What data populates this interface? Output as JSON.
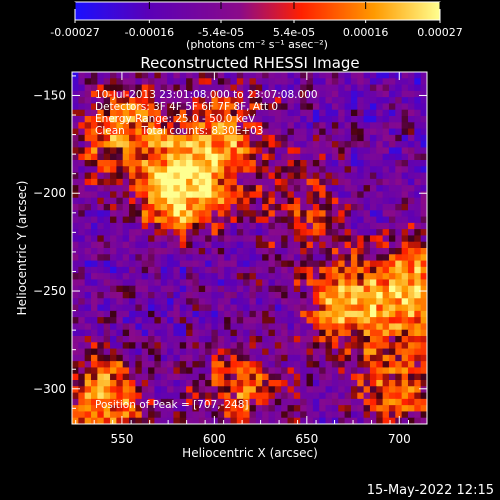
{
  "colorbar": {
    "ticks": [
      "-0.00027",
      "-0.00016",
      "-5.4e-05",
      "5.4e-05",
      "0.00016",
      "0.00027"
    ],
    "tick_values": [
      -0.00027,
      -0.00016,
      -5.4e-05,
      5.4e-05,
      0.00016,
      0.00027
    ],
    "units": "(photons cm⁻² s⁻¹ asec⁻²)",
    "range": [
      -0.00027,
      0.00027
    ],
    "colors": [
      "#1a10ff",
      "#5a00b8",
      "#8a0a8a",
      "#ff2000",
      "#ff9a00",
      "#ffff90"
    ]
  },
  "chart_data": {
    "type": "heatmap",
    "title": "Reconstructed RHESSI Image",
    "xlabel": "Heliocentric X (arcsec)",
    "ylabel": "Heliocentric Y (arcsec)",
    "xlim": [
      523,
      715
    ],
    "ylim": [
      -318,
      -138
    ],
    "xticks": [
      550,
      600,
      650,
      700
    ],
    "yticks": [
      -150,
      -200,
      -250,
      -300
    ],
    "annotations": [
      "10-Jul-2013 23:01:08.000 to 23:07:08.000",
      "Detectors: 3F 4F 5F 6F 7F 8F, Att 0",
      "Energy Range: 25.0 - 50.0 keV",
      "Clean     Total counts: 8.30E+03"
    ],
    "peak_label": "Position of Peak = [707,-248]",
    "peak": [
      707,
      -248
    ],
    "sources": [
      {
        "x": 582,
        "y": -198,
        "strength": 1.0
      },
      {
        "x": 548,
        "y": -168,
        "strength": 0.7
      },
      {
        "x": 607,
        "y": -170,
        "strength": 0.55
      },
      {
        "x": 540,
        "y": -305,
        "strength": 0.75
      },
      {
        "x": 670,
        "y": -258,
        "strength": 0.65
      },
      {
        "x": 707,
        "y": -248,
        "strength": 0.8
      },
      {
        "x": 700,
        "y": -300,
        "strength": 0.6
      },
      {
        "x": 612,
        "y": -300,
        "strength": 0.55
      },
      {
        "x": 650,
        "y": -210,
        "strength": 0.4
      }
    ]
  },
  "timestamp": "15-May-2022 12:15"
}
